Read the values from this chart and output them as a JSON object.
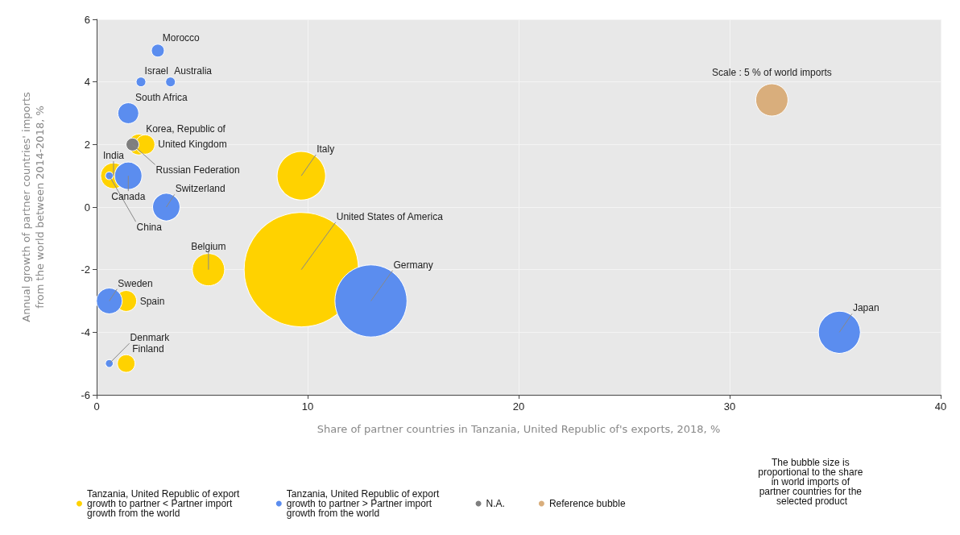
{
  "chart_data": {
    "type": "bubble",
    "xlabel": "Share of partner countries in Tanzania, United Republic of's exports, 2018, %",
    "ylabel": "Annual growth of partner countries' imports\nfrom the world between 2014-2018, %",
    "xlim": [
      0,
      40
    ],
    "xticks": [
      0,
      10,
      20,
      30,
      40
    ],
    "ylim": [
      -6,
      6
    ],
    "yticks": [
      -6,
      -4,
      -2,
      0,
      2,
      4,
      6
    ],
    "grid": true,
    "legend": "bottom",
    "marker": "circle",
    "size_legend": [
      {
        "value": 5,
        "label": "Scale : 5 % of world imports"
      }
    ],
    "series": [
      {
        "name": "Tanzania, United Republic of export growth to partner < Partner import growth from the world",
        "color": "#ffd200",
        "x": [
          0.8,
          2.0,
          2.3,
          9.7,
          9.7,
          5.3,
          1.4,
          1.4
        ],
        "values": [
          1,
          2,
          2,
          1,
          -2,
          -2,
          -3,
          -5
        ],
        "sizes": [
          3.2,
          2.1,
          1.8,
          11.3,
          63,
          5,
          2.1,
          1.5
        ]
      },
      {
        "name": "Tanzania, United Republic of export growth to partner > Partner import growth from the world",
        "color": "#5b8def",
        "x": [
          2.9,
          2.1,
          3.5,
          1.5,
          0.6,
          1.5,
          3.3,
          13,
          0.6,
          0.6,
          35.2
        ],
        "values": [
          5,
          4,
          4,
          3,
          1,
          1,
          0,
          -3,
          -3,
          -5,
          -4
        ],
        "sizes": [
          0.8,
          0.45,
          0.45,
          2.1,
          0.3,
          3.6,
          3.6,
          25,
          3.2,
          0.3,
          8.5
        ]
      },
      {
        "name": "N.A.",
        "color": "#7f7f7f",
        "x": [
          1.7
        ],
        "values": [
          2
        ],
        "sizes": [
          0.8
        ]
      },
      {
        "name": "Reference bubble",
        "color": "#d9ae7c"
      }
    ],
    "annotations": [
      {
        "text": "Morocco",
        "x": 2.9,
        "y": 5
      },
      {
        "text": "Israel",
        "x": 2.1,
        "y": 4
      },
      {
        "text": "Australia",
        "x": 3.5,
        "y": 4
      },
      {
        "text": "South Africa",
        "x": 1.5,
        "y": 3
      },
      {
        "text": "India",
        "x": 0.8,
        "y": 1
      },
      {
        "text": "Korea, Republic of",
        "x": 2.0,
        "y": 2
      },
      {
        "text": "United Kingdom",
        "x": 2.3,
        "y": 2
      },
      {
        "text": "Russian Federation",
        "x": 1.7,
        "y": 2
      },
      {
        "text": "Canada",
        "x": 1.5,
        "y": 1
      },
      {
        "text": "China",
        "x": 0.6,
        "y": 1
      },
      {
        "text": "Switzerland",
        "x": 3.3,
        "y": 0
      },
      {
        "text": "Italy",
        "x": 9.7,
        "y": 1
      },
      {
        "text": "United States of America",
        "x": 9.7,
        "y": -2
      },
      {
        "text": "Belgium",
        "x": 5.3,
        "y": -2
      },
      {
        "text": "Germany",
        "x": 13,
        "y": -3
      },
      {
        "text": "Sweden",
        "x": 0.6,
        "y": -3
      },
      {
        "text": "Spain",
        "x": 1.4,
        "y": -3
      },
      {
        "text": "Finland",
        "x": 1.4,
        "y": -5
      },
      {
        "text": "Denmark",
        "x": 0.6,
        "y": -5
      },
      {
        "text": "Japan",
        "x": 35.2,
        "y": -4
      },
      "The bubble size is proportional to the share in world imports of partner countries for the selected product"
    ]
  }
}
